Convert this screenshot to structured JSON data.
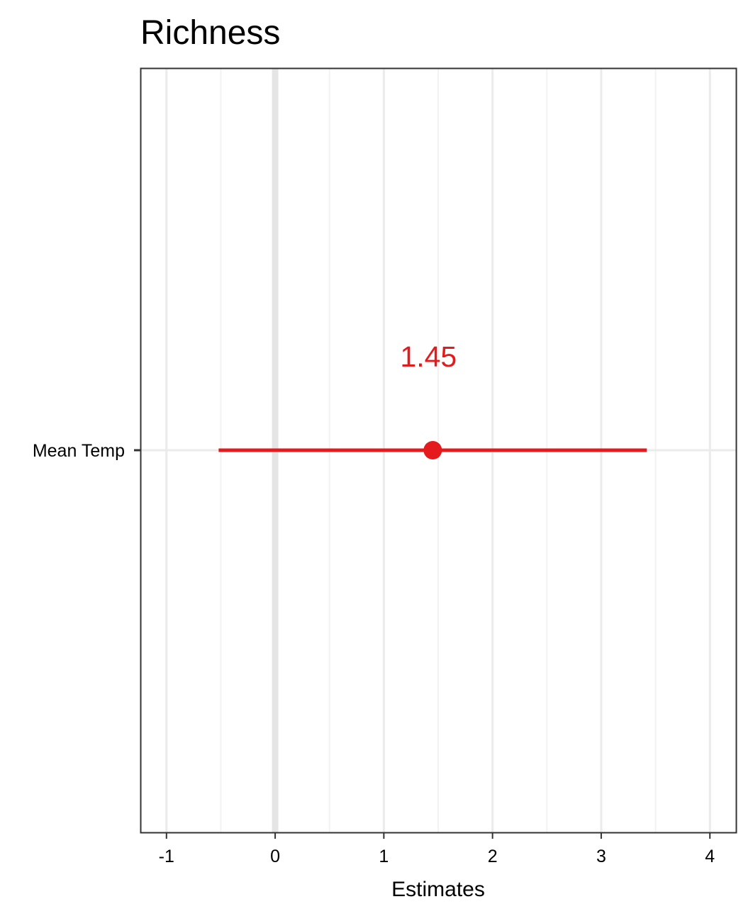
{
  "chart_data": {
    "type": "scatter",
    "subtype": "coefficient-plot",
    "title": "Richness",
    "xlabel": "Estimates",
    "ylabel": "",
    "xlim": [
      -1.24,
      4.24
    ],
    "x_ticks": [
      -1,
      0,
      1,
      2,
      3,
      4
    ],
    "x_tick_labels": [
      "-1",
      "0",
      "1",
      "2",
      "3",
      "4"
    ],
    "categories": [
      "Mean Temp"
    ],
    "series": [
      {
        "points": [
          {
            "term": "Mean Temp",
            "estimate": 1.45,
            "conf_low": -0.52,
            "conf_high": 3.42,
            "label": "1.45"
          }
        ]
      }
    ],
    "reference_line_x": 0,
    "grid": true,
    "legend": "none",
    "colors": {
      "estimate": "#e41a1c",
      "grid_major": "#ebebeb",
      "grid_minor": "#f2f2f2",
      "reference_line": "#e5e5e5",
      "panel_border": "#333333"
    }
  }
}
